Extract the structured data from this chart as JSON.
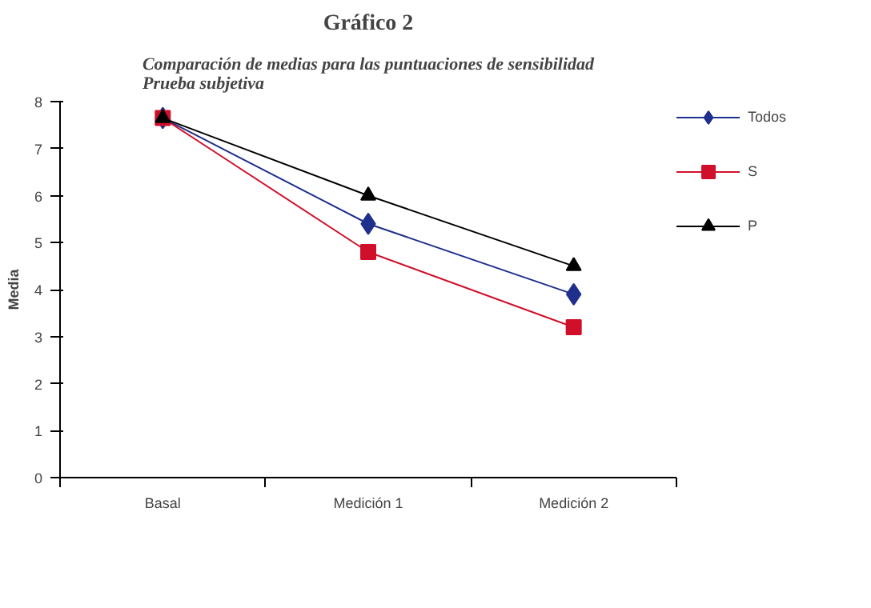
{
  "chart_data": {
    "type": "line",
    "title": "Gráfico 2",
    "subtitle": "Comparación de medias para las puntuaciones de sensibilidad\nPrueba subjetiva",
    "ylabel": "Media",
    "categories": [
      "Basal",
      "Medición 1",
      "Medición 2"
    ],
    "ylim": [
      0,
      8
    ],
    "yticks": [
      0,
      1,
      2,
      3,
      4,
      5,
      6,
      7,
      8
    ],
    "legend": "right",
    "line_style": "solid",
    "series": [
      {
        "name": "Todos",
        "color": "#1f2f8c",
        "marker": "diamond",
        "values": [
          7.65,
          5.4,
          3.9
        ]
      },
      {
        "name": "S",
        "color": "#d0102a",
        "marker": "square",
        "values": [
          7.65,
          4.8,
          3.2
        ]
      },
      {
        "name": "P",
        "color": "#000000",
        "marker": "triangle",
        "values": [
          7.65,
          6.0,
          4.5
        ]
      }
    ]
  }
}
